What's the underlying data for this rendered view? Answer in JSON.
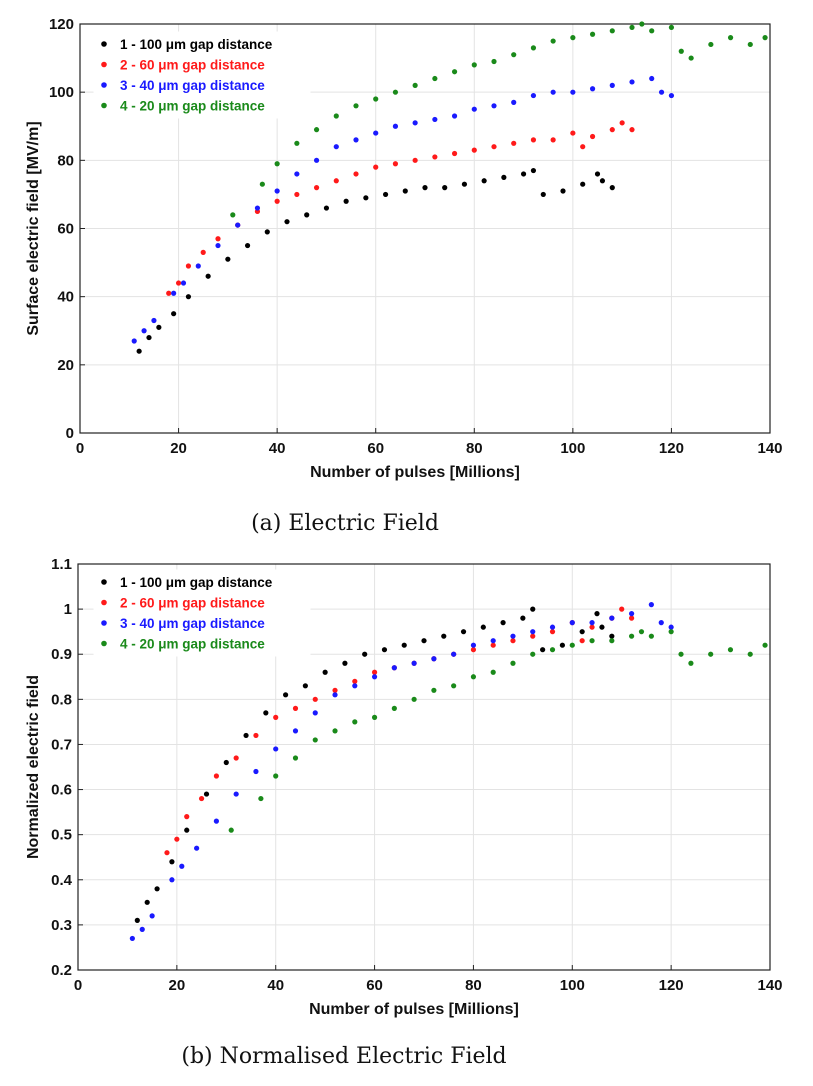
{
  "chart_data": [
    {
      "type": "scatter",
      "panel": "a",
      "caption": "(a) Electric Field",
      "xlabel": "Number of pulses [Millions]",
      "ylabel": "Surface electric field [MV/m]",
      "xlim": [
        0,
        140
      ],
      "ylim": [
        0,
        120
      ],
      "xticks": [
        0,
        20,
        40,
        60,
        80,
        100,
        120,
        140
      ],
      "yticks": [
        0,
        20,
        40,
        60,
        80,
        100,
        120
      ],
      "ytick_labels": [
        "0",
        "20",
        "40",
        "60",
        "80",
        "100",
        "120"
      ],
      "grid": true,
      "legend_position": "top-left",
      "series": [
        {
          "name": "1 - 100 μm gap distance",
          "color": "#000000",
          "x": [
            12,
            14,
            16,
            19,
            22,
            26,
            30,
            34,
            38,
            42,
            46,
            50,
            54,
            58,
            62,
            66,
            70,
            74,
            78,
            82,
            86,
            90,
            92,
            94,
            98,
            102,
            105,
            106,
            108
          ],
          "y": [
            24,
            28,
            31,
            35,
            40,
            46,
            51,
            55,
            59,
            62,
            64,
            66,
            68,
            69,
            70,
            71,
            72,
            72,
            73,
            74,
            75,
            76,
            77,
            70,
            71,
            73,
            76,
            74,
            72
          ]
        },
        {
          "name": "2 - 60 μm gap distance",
          "color": "#ff1a1a",
          "x": [
            18,
            20,
            22,
            25,
            28,
            32,
            36,
            40,
            44,
            48,
            52,
            56,
            60,
            64,
            68,
            72,
            76,
            80,
            84,
            88,
            92,
            96,
            100,
            102,
            104,
            108,
            110,
            112
          ],
          "y": [
            41,
            44,
            49,
            53,
            57,
            61,
            65,
            68,
            70,
            72,
            74,
            76,
            78,
            79,
            80,
            81,
            82,
            83,
            84,
            85,
            86,
            86,
            88,
            84,
            87,
            89,
            91,
            89
          ]
        },
        {
          "name": "3 - 40 μm gap distance",
          "color": "#1a1aff",
          "x": [
            11,
            13,
            15,
            19,
            21,
            24,
            28,
            32,
            36,
            40,
            44,
            48,
            52,
            56,
            60,
            64,
            68,
            72,
            76,
            80,
            84,
            88,
            92,
            96,
            100,
            104,
            108,
            112,
            116,
            118,
            120
          ],
          "y": [
            27,
            30,
            33,
            41,
            44,
            49,
            55,
            61,
            66,
            71,
            76,
            80,
            84,
            86,
            88,
            90,
            91,
            92,
            93,
            95,
            96,
            97,
            99,
            100,
            100,
            101,
            102,
            103,
            104,
            100,
            99
          ]
        },
        {
          "name": "4 - 20 μm gap distance",
          "color": "#1a8a1a",
          "x": [
            31,
            37,
            40,
            44,
            48,
            52,
            56,
            60,
            64,
            68,
            72,
            76,
            80,
            84,
            88,
            92,
            96,
            100,
            104,
            108,
            112,
            114,
            116,
            120,
            122,
            124,
            128,
            132,
            136,
            139
          ],
          "y": [
            64,
            73,
            79,
            85,
            89,
            93,
            96,
            98,
            100,
            102,
            104,
            106,
            108,
            109,
            111,
            113,
            115,
            116,
            117,
            118,
            119,
            120,
            118,
            119,
            112,
            110,
            114,
            116,
            114,
            116
          ]
        }
      ]
    },
    {
      "type": "scatter",
      "panel": "b",
      "caption": "(b) Normalised Electric Field",
      "xlabel": "Number of pulses [Millions]",
      "ylabel": "Normalized electric field",
      "xlim": [
        0,
        140
      ],
      "ylim": [
        0.2,
        1.1
      ],
      "xticks": [
        0,
        20,
        40,
        60,
        80,
        100,
        120,
        140
      ],
      "yticks": [
        0.2,
        0.3,
        0.4,
        0.5,
        0.6,
        0.7,
        0.8,
        0.9,
        1.0,
        1.1
      ],
      "ytick_labels": [
        "0.2",
        "0.3",
        "0.4",
        "0.5",
        "0.6",
        "0.7",
        "0.8",
        "0.9",
        "1",
        "1.1"
      ],
      "grid": true,
      "legend_position": "top-left",
      "series": [
        {
          "name": "1 - 100 μm gap distance",
          "color": "#000000",
          "x": [
            12,
            14,
            16,
            19,
            22,
            26,
            30,
            34,
            38,
            42,
            46,
            50,
            54,
            58,
            62,
            66,
            70,
            74,
            78,
            82,
            86,
            90,
            92,
            94,
            98,
            102,
            105,
            106,
            108
          ],
          "y": [
            0.31,
            0.35,
            0.38,
            0.44,
            0.51,
            0.59,
            0.66,
            0.72,
            0.77,
            0.81,
            0.83,
            0.86,
            0.88,
            0.9,
            0.91,
            0.92,
            0.93,
            0.94,
            0.95,
            0.96,
            0.97,
            0.98,
            1.0,
            0.91,
            0.92,
            0.95,
            0.99,
            0.96,
            0.94
          ]
        },
        {
          "name": "2 - 60 μm gap distance",
          "color": "#ff1a1a",
          "x": [
            18,
            20,
            22,
            25,
            28,
            32,
            36,
            40,
            44,
            48,
            52,
            56,
            60,
            64,
            68,
            72,
            76,
            80,
            84,
            88,
            92,
            96,
            100,
            102,
            104,
            108,
            110,
            112
          ],
          "y": [
            0.46,
            0.49,
            0.54,
            0.58,
            0.63,
            0.67,
            0.72,
            0.76,
            0.78,
            0.8,
            0.82,
            0.84,
            0.86,
            0.87,
            0.88,
            0.89,
            0.9,
            0.91,
            0.92,
            0.93,
            0.94,
            0.95,
            0.97,
            0.93,
            0.96,
            0.98,
            1.0,
            0.98
          ]
        },
        {
          "name": "3 - 40 μm gap distance",
          "color": "#1a1aff",
          "x": [
            11,
            13,
            15,
            19,
            21,
            24,
            28,
            32,
            36,
            40,
            44,
            48,
            52,
            56,
            60,
            64,
            68,
            72,
            76,
            80,
            84,
            88,
            92,
            96,
            100,
            104,
            108,
            112,
            116,
            118,
            120
          ],
          "y": [
            0.27,
            0.29,
            0.32,
            0.4,
            0.43,
            0.47,
            0.53,
            0.59,
            0.64,
            0.69,
            0.73,
            0.77,
            0.81,
            0.83,
            0.85,
            0.87,
            0.88,
            0.89,
            0.9,
            0.92,
            0.93,
            0.94,
            0.95,
            0.96,
            0.97,
            0.97,
            0.98,
            0.99,
            1.01,
            0.97,
            0.96
          ]
        },
        {
          "name": "4 - 20 μm gap distance",
          "color": "#1a8a1a",
          "x": [
            31,
            37,
            40,
            44,
            48,
            52,
            56,
            60,
            64,
            68,
            72,
            76,
            80,
            84,
            88,
            92,
            96,
            100,
            104,
            108,
            112,
            114,
            116,
            120,
            122,
            124,
            128,
            132,
            136,
            139
          ],
          "y": [
            0.51,
            0.58,
            0.63,
            0.67,
            0.71,
            0.73,
            0.75,
            0.76,
            0.78,
            0.8,
            0.82,
            0.83,
            0.85,
            0.86,
            0.88,
            0.9,
            0.91,
            0.92,
            0.93,
            0.93,
            0.94,
            0.95,
            0.94,
            0.95,
            0.9,
            0.88,
            0.9,
            0.91,
            0.9,
            0.92
          ]
        }
      ]
    }
  ]
}
